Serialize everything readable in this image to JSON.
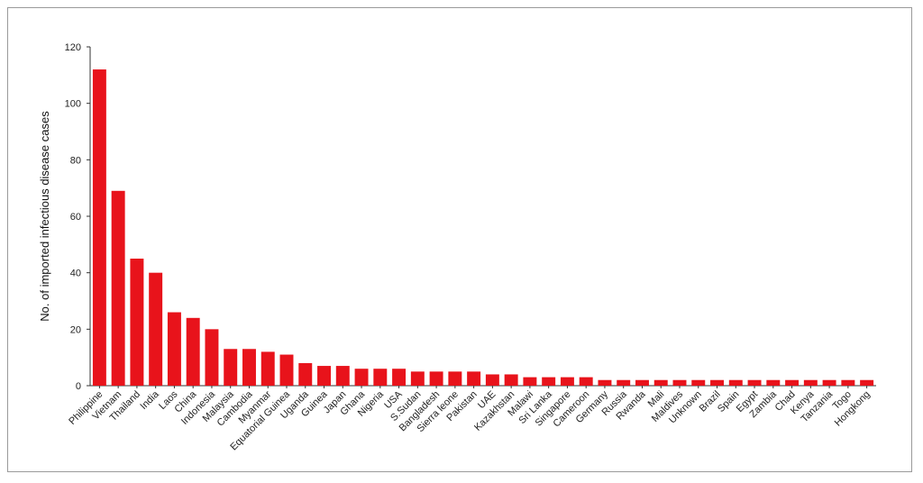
{
  "chart_data": {
    "type": "bar",
    "title": "",
    "xlabel": "",
    "ylabel": "No. of imported infectious disease cases",
    "ylim": [
      0,
      120
    ],
    "yticks": [
      0,
      20,
      40,
      60,
      80,
      100,
      120
    ],
    "grid": false,
    "bar_color": "#e8131b",
    "categories": [
      "Philippine",
      "Vietnam",
      "Thailand",
      "India",
      "Laos",
      "China",
      "Indonesia",
      "Malaysia",
      "Cambodia",
      "Myanmar",
      "Equatorial Guinea",
      "Uganda",
      "Guinea",
      "Japan",
      "Ghana",
      "Nigeria",
      "USA",
      "S.Sudan",
      "Bangladesh",
      "Sierra leone",
      "Pakistan",
      "UAE",
      "Kazakhstan",
      "Malawi",
      "Sri Lanka",
      "Singapore",
      "Cameroon",
      "Germany",
      "Russia",
      "Rwanda",
      "Mali",
      "Maldives",
      "Unknown",
      "Brazil",
      "Spain",
      "Egypt",
      "Zambia",
      "Chad",
      "Kenya",
      "Tanzania",
      "Togo",
      "Hongkong"
    ],
    "values": [
      112,
      69,
      45,
      40,
      26,
      24,
      20,
      13,
      13,
      12,
      11,
      8,
      7,
      7,
      6,
      6,
      6,
      5,
      5,
      5,
      5,
      4,
      4,
      3,
      3,
      3,
      3,
      2,
      2,
      2,
      2,
      2,
      2,
      2,
      2,
      2,
      2,
      2,
      2,
      2,
      2,
      2
    ]
  }
}
